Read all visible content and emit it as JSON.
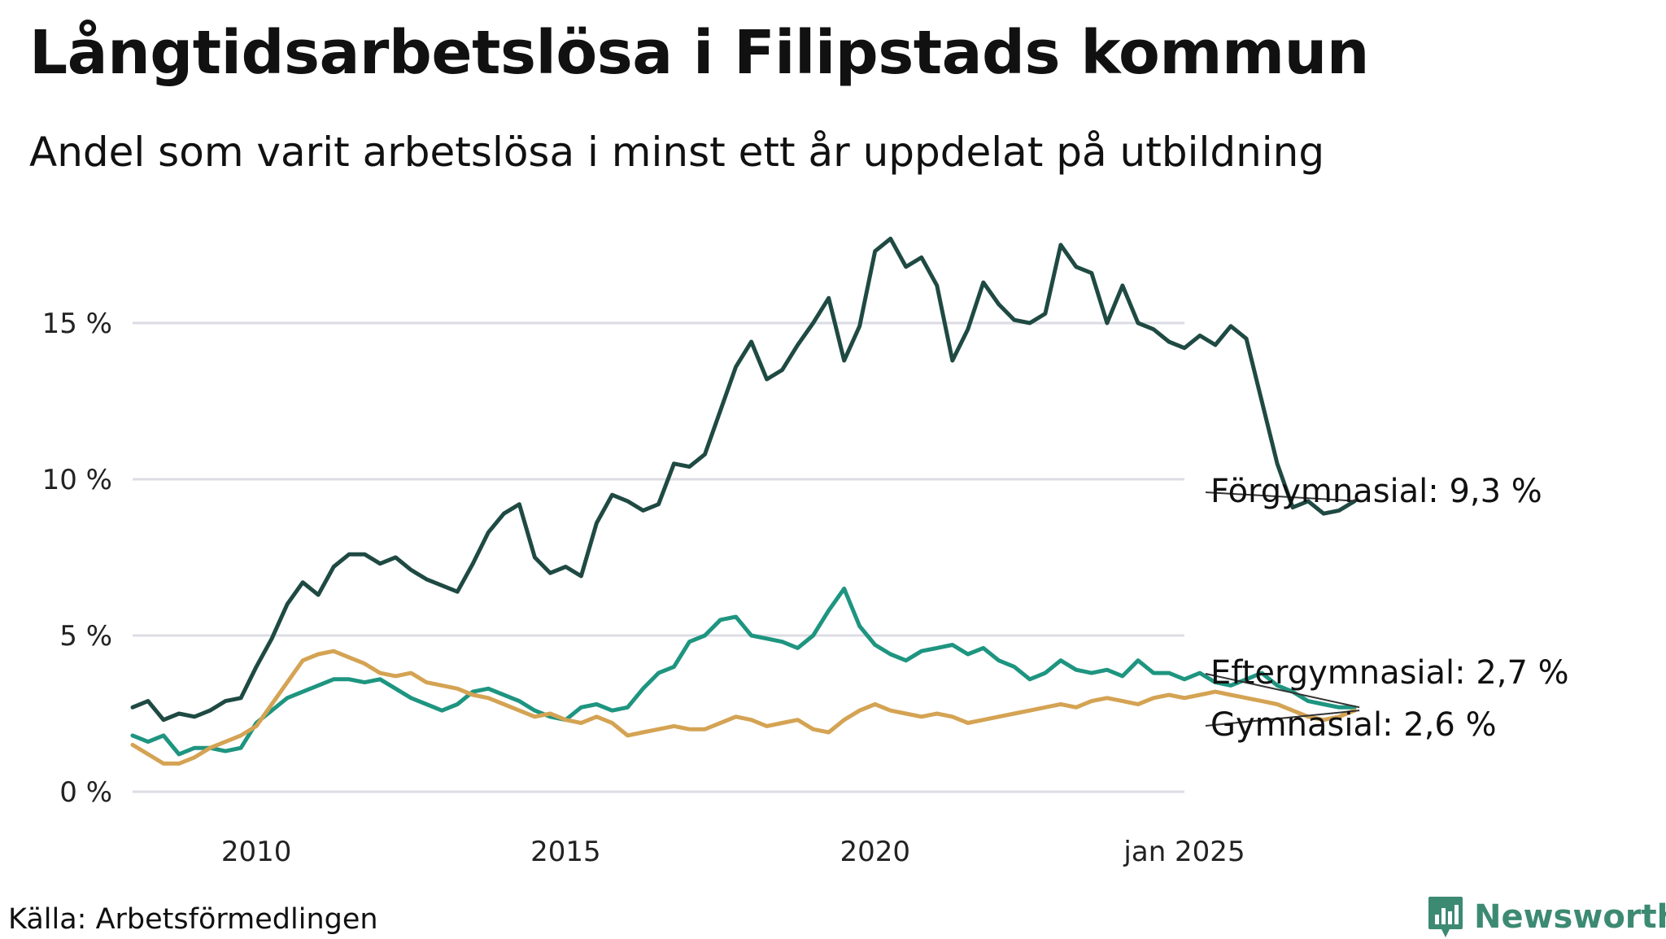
{
  "title": "Långtidsarbetslösa i Filipstads kommun",
  "subtitle": "Andel som varit arbetslösa i minst ett år uppdelat på utbildning",
  "source": "Källa: Arbetsförmedlingen",
  "brand": "Newsworthy",
  "chart_data": {
    "type": "line",
    "x_start": 2008.0,
    "step_months": 3,
    "xlim": [
      2008.0,
      2025.0
    ],
    "ylim": [
      0,
      18
    ],
    "y_ticks": [
      0,
      5,
      10,
      15
    ],
    "y_tick_labels": [
      "0 %",
      "5 %",
      "10 %",
      "15 %"
    ],
    "x_ticks": [
      2010,
      2015,
      2020,
      2025
    ],
    "x_tick_labels": [
      "2010",
      "2015",
      "2020",
      "jan 2025"
    ],
    "grid": true,
    "series": [
      {
        "name": "Förgymnasial",
        "label": "Förgymnasial: 9,3 %",
        "color": "#1f4a43",
        "values": [
          2.7,
          2.9,
          2.3,
          2.5,
          2.4,
          2.6,
          2.9,
          3.0,
          4.0,
          4.9,
          6.0,
          6.7,
          6.3,
          7.2,
          7.6,
          7.6,
          7.3,
          7.5,
          7.1,
          6.8,
          6.6,
          6.4,
          7.3,
          8.3,
          8.9,
          9.2,
          7.5,
          7.0,
          7.2,
          6.9,
          8.6,
          9.5,
          9.3,
          9.0,
          9.2,
          10.5,
          10.4,
          10.8,
          12.2,
          13.6,
          14.4,
          13.2,
          13.5,
          14.3,
          15.0,
          15.8,
          13.8,
          14.9,
          17.3,
          17.7,
          16.8,
          17.1,
          16.2,
          13.8,
          14.8,
          16.3,
          15.6,
          15.1,
          15.0,
          15.3,
          17.5,
          16.8,
          16.6,
          15.0,
          16.2,
          15.0,
          14.8,
          14.4,
          14.2,
          14.6,
          14.3,
          14.9,
          14.5,
          12.5,
          10.5,
          9.1,
          9.3,
          8.9,
          9.0,
          9.3
        ]
      },
      {
        "name": "Eftergymnasial",
        "label": "Eftergymnasial: 2,7 %",
        "color": "#1e9580",
        "values": [
          1.8,
          1.6,
          1.8,
          1.2,
          1.4,
          1.4,
          1.3,
          1.4,
          2.2,
          2.6,
          3.0,
          3.2,
          3.4,
          3.6,
          3.6,
          3.5,
          3.6,
          3.3,
          3.0,
          2.8,
          2.6,
          2.8,
          3.2,
          3.3,
          3.1,
          2.9,
          2.6,
          2.4,
          2.3,
          2.7,
          2.8,
          2.6,
          2.7,
          3.3,
          3.8,
          4.0,
          4.8,
          5.0,
          5.5,
          5.6,
          5.0,
          4.9,
          4.8,
          4.6,
          5.0,
          5.8,
          6.5,
          5.3,
          4.7,
          4.4,
          4.2,
          4.5,
          4.6,
          4.7,
          4.4,
          4.6,
          4.2,
          4.0,
          3.6,
          3.8,
          4.2,
          3.9,
          3.8,
          3.9,
          3.7,
          4.2,
          3.8,
          3.8,
          3.6,
          3.8,
          3.5,
          3.4,
          3.6,
          3.8,
          3.4,
          3.2,
          2.9,
          2.8,
          2.7,
          2.7
        ]
      },
      {
        "name": "Gymnasial",
        "label": "Gymnasial: 2,6 %",
        "color": "#d4a353",
        "values": [
          1.5,
          1.2,
          0.9,
          0.9,
          1.1,
          1.4,
          1.6,
          1.8,
          2.1,
          2.8,
          3.5,
          4.2,
          4.4,
          4.5,
          4.3,
          4.1,
          3.8,
          3.7,
          3.8,
          3.5,
          3.4,
          3.3,
          3.1,
          3.0,
          2.8,
          2.6,
          2.4,
          2.5,
          2.3,
          2.2,
          2.4,
          2.2,
          1.8,
          1.9,
          2.0,
          2.1,
          2.0,
          2.0,
          2.2,
          2.4,
          2.3,
          2.1,
          2.2,
          2.3,
          2.0,
          1.9,
          2.3,
          2.6,
          2.8,
          2.6,
          2.5,
          2.4,
          2.5,
          2.4,
          2.2,
          2.3,
          2.4,
          2.5,
          2.6,
          2.7,
          2.8,
          2.7,
          2.9,
          3.0,
          2.9,
          2.8,
          3.0,
          3.1,
          3.0,
          3.1,
          3.2,
          3.1,
          3.0,
          2.9,
          2.8,
          2.6,
          2.4,
          2.3,
          2.4,
          2.6
        ]
      }
    ]
  }
}
